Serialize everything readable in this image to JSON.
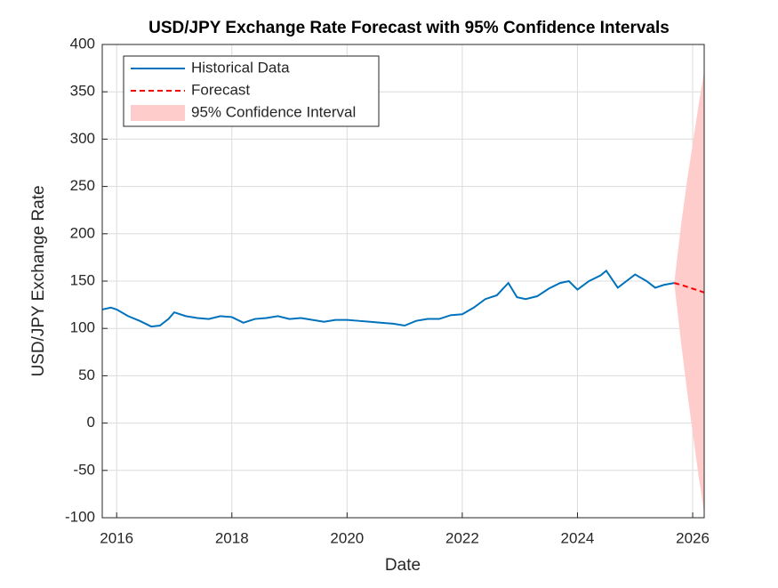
{
  "chart_data": {
    "type": "line",
    "title": "USD/JPY Exchange Rate Forecast with 95% Confidence Intervals",
    "x_label": "Date",
    "y_label": "USD/JPY Exchange Rate",
    "xlim": [
      2015.75,
      2026.2
    ],
    "xticks": [
      2016,
      2018,
      2020,
      2022,
      2024,
      2026
    ],
    "ylim": [
      -100,
      400
    ],
    "yticks": [
      -100,
      -50,
      0,
      50,
      100,
      150,
      200,
      250,
      300,
      350,
      400
    ],
    "grid": true,
    "legend": "upper left",
    "series": [
      {
        "name": "Historical Data",
        "color": "#0072bd",
        "line_style": "solid",
        "x": [
          2015.75,
          2015.9,
          2016.0,
          2016.2,
          2016.4,
          2016.6,
          2016.75,
          2016.9,
          2017.0,
          2017.2,
          2017.4,
          2017.6,
          2017.8,
          2018.0,
          2018.2,
          2018.4,
          2018.6,
          2018.8,
          2019.0,
          2019.2,
          2019.4,
          2019.6,
          2019.8,
          2020.0,
          2020.2,
          2020.4,
          2020.6,
          2020.8,
          2021.0,
          2021.2,
          2021.4,
          2021.6,
          2021.8,
          2022.0,
          2022.2,
          2022.4,
          2022.6,
          2022.8,
          2022.95,
          2023.1,
          2023.3,
          2023.5,
          2023.7,
          2023.85,
          2024.0,
          2024.2,
          2024.4,
          2024.5,
          2024.7,
          2024.85,
          2025.0,
          2025.2,
          2025.35,
          2025.5,
          2025.68
        ],
        "values": [
          120,
          122,
          120,
          113,
          108,
          102,
          103,
          110,
          117,
          113,
          111,
          110,
          113,
          112,
          106,
          110,
          111,
          113,
          110,
          111,
          109,
          107,
          109,
          109,
          108,
          107,
          106,
          105,
          103,
          108,
          110,
          110,
          114,
          115,
          122,
          131,
          135,
          148,
          133,
          131,
          134,
          142,
          148,
          150,
          141,
          150,
          156,
          161,
          143,
          150,
          157,
          150,
          143,
          146,
          148
        ]
      },
      {
        "name": "Forecast",
        "color": "#ff0000",
        "line_style": "dashed",
        "x": [
          2025.68,
          2025.8,
          2025.9,
          2026.0,
          2026.1,
          2026.2
        ],
        "values": [
          148,
          146,
          144,
          142,
          140,
          138
        ]
      }
    ],
    "band": {
      "name": "95% Confidence Interval",
      "color": "#ffcccc",
      "x": [
        2025.68,
        2025.8,
        2025.9,
        2026.0,
        2026.1,
        2026.2
      ],
      "upper": [
        148,
        210,
        255,
        295,
        335,
        372
      ],
      "lower": [
        148,
        84,
        35,
        -10,
        -55,
        -95
      ]
    }
  }
}
